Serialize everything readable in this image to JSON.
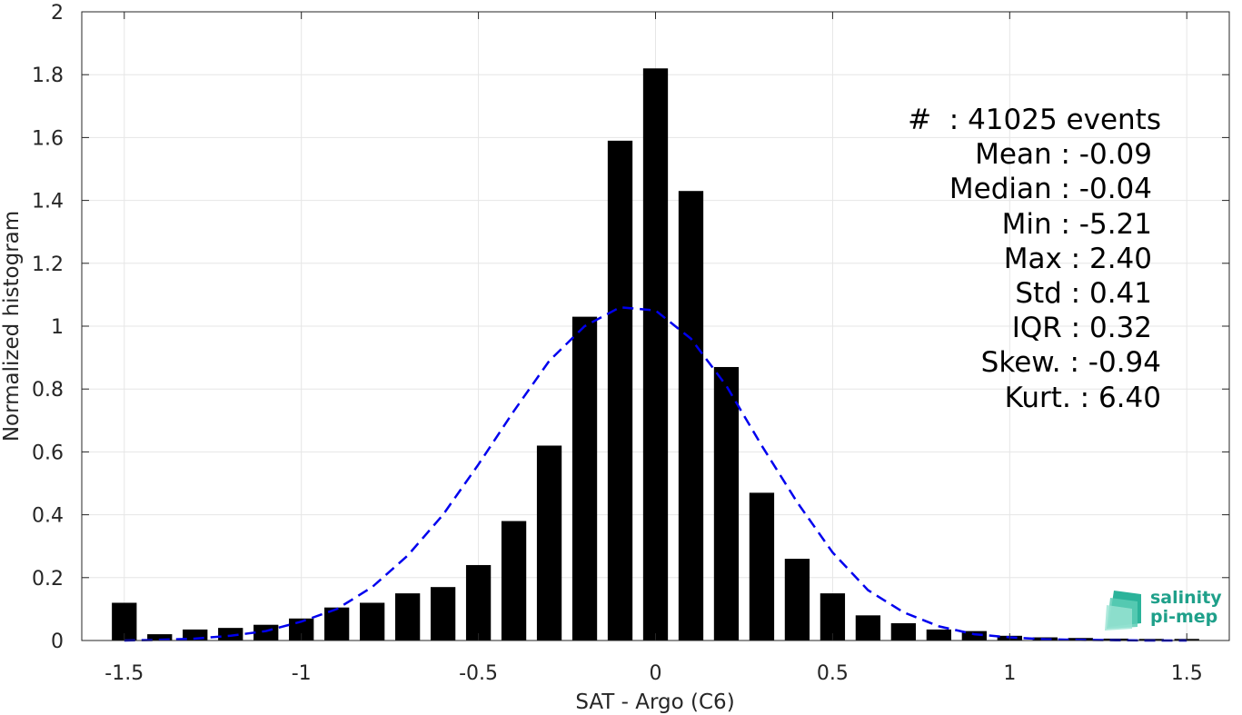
{
  "chart_data": {
    "type": "bar",
    "xlabel": "SAT - Argo (C6)",
    "ylabel": "Normalized histogram",
    "xlim": [
      -1.62,
      1.62
    ],
    "ylim": [
      0,
      2
    ],
    "xticks": [
      -1.5,
      -1,
      -0.5,
      0,
      0.5,
      1,
      1.5
    ],
    "xtick_labels": [
      "-1.5",
      "-1",
      "-0.5",
      "0",
      "0.5",
      "1",
      "1.5"
    ],
    "yticks": [
      0,
      0.2,
      0.4,
      0.6,
      0.8,
      1,
      1.2,
      1.4,
      1.6,
      1.8,
      2
    ],
    "ytick_labels": [
      "0",
      "0.2",
      "0.4",
      "0.6",
      "0.8",
      "1",
      "1.2",
      "1.4",
      "1.6",
      "1.8",
      "2"
    ],
    "grid": true,
    "bar_color": "#000000",
    "bar_width": 0.07,
    "bins": [
      {
        "x": -1.5,
        "y": 0.12
      },
      {
        "x": -1.4,
        "y": 0.02
      },
      {
        "x": -1.3,
        "y": 0.035
      },
      {
        "x": -1.2,
        "y": 0.04
      },
      {
        "x": -1.1,
        "y": 0.05
      },
      {
        "x": -1.0,
        "y": 0.07
      },
      {
        "x": -0.9,
        "y": 0.105
      },
      {
        "x": -0.8,
        "y": 0.12
      },
      {
        "x": -0.7,
        "y": 0.15
      },
      {
        "x": -0.6,
        "y": 0.17
      },
      {
        "x": -0.5,
        "y": 0.24
      },
      {
        "x": -0.4,
        "y": 0.38
      },
      {
        "x": -0.3,
        "y": 0.62
      },
      {
        "x": -0.2,
        "y": 1.03
      },
      {
        "x": -0.1,
        "y": 1.59
      },
      {
        "x": 0.0,
        "y": 1.82
      },
      {
        "x": 0.1,
        "y": 1.43
      },
      {
        "x": 0.2,
        "y": 0.87
      },
      {
        "x": 0.3,
        "y": 0.47
      },
      {
        "x": 0.4,
        "y": 0.26
      },
      {
        "x": 0.5,
        "y": 0.15
      },
      {
        "x": 0.6,
        "y": 0.08
      },
      {
        "x": 0.7,
        "y": 0.055
      },
      {
        "x": 0.8,
        "y": 0.035
      },
      {
        "x": 0.9,
        "y": 0.03
      },
      {
        "x": 1.0,
        "y": 0.015
      },
      {
        "x": 1.1,
        "y": 0.01
      },
      {
        "x": 1.2,
        "y": 0.008
      },
      {
        "x": 1.3,
        "y": 0.006
      },
      {
        "x": 1.4,
        "y": 0.005
      },
      {
        "x": 1.5,
        "y": 0.005
      }
    ],
    "fit_curve": {
      "color": "#0000ee",
      "style": "dashed",
      "x": [
        -1.5,
        -1.4,
        -1.3,
        -1.2,
        -1.1,
        -1.0,
        -0.9,
        -0.8,
        -0.7,
        -0.6,
        -0.5,
        -0.4,
        -0.3,
        -0.2,
        -0.1,
        0.0,
        0.1,
        0.2,
        0.3,
        0.4,
        0.5,
        0.6,
        0.7,
        0.8,
        0.9,
        1.0,
        1.1,
        1.2,
        1.3,
        1.4,
        1.5
      ],
      "y": [
        0.0,
        0.002,
        0.006,
        0.015,
        0.03,
        0.06,
        0.1,
        0.17,
        0.27,
        0.4,
        0.56,
        0.73,
        0.89,
        1.0,
        1.06,
        1.05,
        0.96,
        0.81,
        0.62,
        0.44,
        0.28,
        0.16,
        0.09,
        0.045,
        0.02,
        0.01,
        0.004,
        0.002,
        0.001,
        0.0,
        0.0
      ]
    }
  },
  "stats": {
    "events": "#  : 41025 events",
    "mean": "Mean : -0.09",
    "median": "Median : -0.04",
    "min": "Min : -5.21",
    "max": "Max : 2.40",
    "std": "Std : 0.41",
    "iqr": "IQR : 0.32",
    "skew": "Skew. : -0.94",
    "kurt": "Kurt. : 6.40"
  },
  "logo": {
    "line1": "salinity",
    "line2": "pi-mep",
    "color": "#1fa08a"
  }
}
